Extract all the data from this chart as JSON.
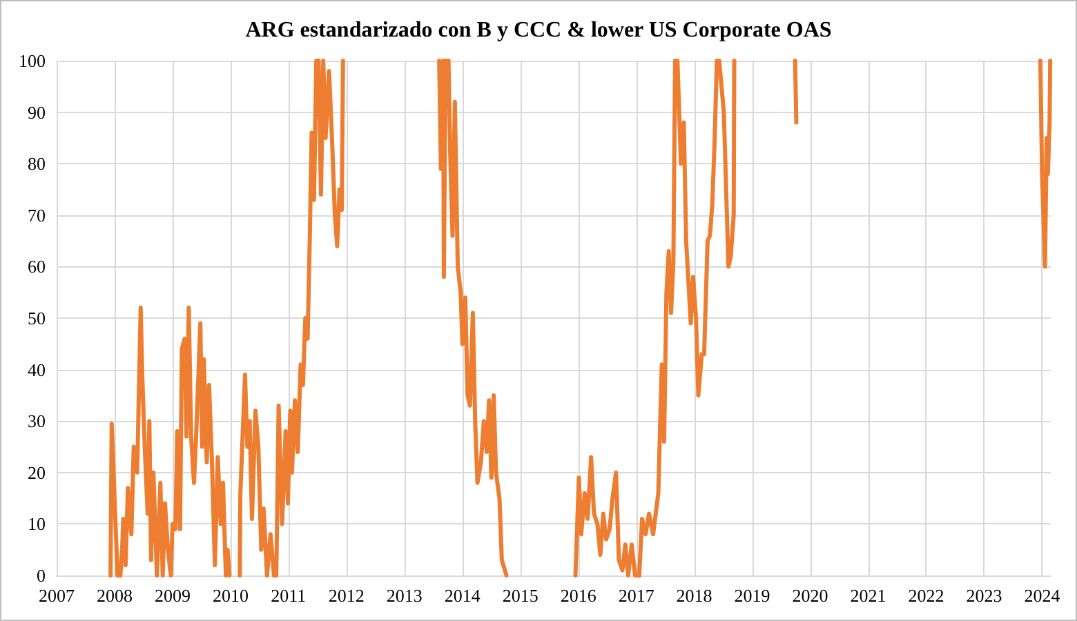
{
  "chart_data": {
    "type": "line",
    "title": "ARG estandarizado con B y CCC & lower US Corporate OAS",
    "x": [
      2007.93,
      2007.95,
      2007.99,
      2008.05,
      2008.1,
      2008.13,
      2008.15,
      2008.19,
      2008.23,
      2008.29,
      2008.33,
      2008.39,
      2008.45,
      2008.48,
      2008.52,
      2008.57,
      2008.6,
      2008.63,
      2008.67,
      2008.73,
      2008.79,
      2008.83,
      2008.87,
      2008.92,
      2008.97,
      2009.0,
      2009.05,
      2009.08,
      2009.13,
      2009.16,
      2009.21,
      2009.24,
      2009.28,
      2009.32,
      2009.37,
      2009.41,
      2009.48,
      2009.51,
      2009.54,
      2009.59,
      2009.63,
      2009.68,
      2009.73,
      2009.78,
      2009.83,
      2009.87,
      2009.92,
      2009.95,
      2009.98,
      2010.07,
      2010.16,
      2010.17,
      2010.25,
      2010.29,
      2010.33,
      2010.37,
      2010.43,
      2010.48,
      2010.53,
      2010.57,
      2010.63,
      2010.69,
      2010.75,
      2010.79,
      2010.83,
      2010.89,
      2010.95,
      2010.99,
      2011.03,
      2011.06,
      2011.11,
      2011.16,
      2011.21,
      2011.25,
      2011.29,
      2011.33,
      2011.37,
      2011.4,
      2011.44,
      2011.48,
      2011.52,
      2011.56,
      2011.6,
      2011.64,
      2011.7,
      2011.75,
      2011.8,
      2011.84,
      2011.88,
      2011.92,
      2011.94,
      2012.8,
      2013.6,
      2013.63,
      2013.67,
      2013.68,
      2013.71,
      2013.76,
      2013.79,
      2013.83,
      2013.87,
      2013.92,
      2013.97,
      2014.0,
      2014.05,
      2014.09,
      2014.13,
      2014.18,
      2014.22,
      2014.26,
      2014.32,
      2014.37,
      2014.42,
      2014.46,
      2014.5,
      2014.54,
      2014.58,
      2014.64,
      2014.68,
      2014.76,
      2015.4,
      2015.95,
      2016.01,
      2016.05,
      2016.11,
      2016.16,
      2016.22,
      2016.27,
      2016.33,
      2016.38,
      2016.43,
      2016.48,
      2016.54,
      2016.59,
      2016.65,
      2016.7,
      2016.76,
      2016.81,
      2016.86,
      2016.92,
      2016.98,
      2017.05,
      2017.1,
      2017.16,
      2017.22,
      2017.29,
      2017.38,
      2017.44,
      2017.48,
      2017.52,
      2017.56,
      2017.6,
      2017.64,
      2017.67,
      2017.71,
      2017.77,
      2017.82,
      2017.86,
      2017.9,
      2017.94,
      2017.98,
      2018.03,
      2018.07,
      2018.13,
      2018.17,
      2018.23,
      2018.27,
      2018.31,
      2018.35,
      2018.39,
      2018.43,
      2018.51,
      2018.55,
      2018.59,
      2018.63,
      2018.68,
      2018.69,
      2019.2,
      2019.74,
      2019.76,
      2021.5,
      2023.97,
      2024.0,
      2024.05,
      2024.08,
      2024.1,
      2024.13,
      2024.14
    ],
    "values": [
      0,
      29.5,
      18,
      0,
      0,
      5,
      11,
      2,
      17,
      8,
      25,
      20,
      52,
      38,
      25,
      12,
      30,
      3,
      20,
      0,
      18,
      0,
      14,
      5,
      0,
      10,
      9,
      28,
      9,
      44,
      46,
      27,
      52,
      27,
      18,
      28,
      49,
      25,
      42,
      22,
      37,
      22,
      2,
      23,
      10,
      18,
      0,
      5,
      0,
      null,
      0,
      16,
      39,
      25,
      30,
      11,
      32,
      25,
      5,
      13,
      0,
      8,
      0,
      0,
      33,
      10,
      28,
      14,
      32,
      20,
      34,
      24,
      41,
      37,
      50,
      46,
      67,
      86,
      73,
      100,
      100,
      74,
      100,
      85,
      98,
      85,
      70,
      64,
      75,
      71,
      100,
      null,
      100,
      79,
      100,
      58,
      100,
      100,
      82,
      66,
      92,
      60,
      55,
      45,
      54,
      35,
      33,
      51,
      30,
      18,
      22,
      30,
      24,
      34,
      19,
      35,
      20,
      15,
      3,
      0,
      null,
      0,
      19,
      8,
      16,
      11,
      23,
      12,
      10,
      4,
      12,
      7,
      9,
      15,
      20,
      3,
      1,
      6,
      0,
      6,
      0,
      0,
      11,
      8,
      12,
      8,
      16,
      41,
      26,
      55,
      63,
      51,
      61,
      100,
      100,
      80,
      88,
      65,
      57,
      49,
      58,
      50,
      35,
      43,
      43,
      65,
      66,
      72,
      84,
      100,
      100,
      90,
      75,
      60,
      62,
      70,
      100,
      null,
      100,
      88,
      null,
      100,
      78,
      60,
      85,
      78,
      88,
      100
    ],
    "color": "#ed7d31",
    "xlim": [
      2007,
      2024.15
    ],
    "xticks": [
      2007,
      2008,
      2009,
      2010,
      2011,
      2012,
      2013,
      2014,
      2015,
      2016,
      2017,
      2018,
      2019,
      2020,
      2021,
      2022,
      2023,
      2024
    ],
    "ylim": [
      0,
      100
    ],
    "yticks": [
      0,
      10,
      20,
      30,
      40,
      50,
      60,
      70,
      80,
      90,
      100
    ],
    "grid": true,
    "marker": "none",
    "line_style": "solid"
  }
}
